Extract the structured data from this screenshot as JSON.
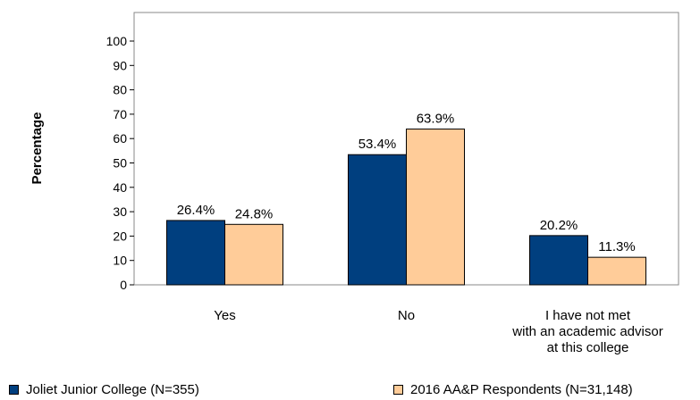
{
  "chart_data": {
    "type": "bar",
    "ylabel": "Percentage",
    "ylim": [
      0,
      100
    ],
    "yticks": [
      0,
      10,
      20,
      30,
      40,
      50,
      60,
      70,
      80,
      90,
      100
    ],
    "categories": [
      "Yes",
      "No",
      "I have not met\nwith an academic advisor\nat this college"
    ],
    "series": [
      {
        "name": "Joliet Junior College (N=355)",
        "color": "#003f7f",
        "values": [
          26.4,
          53.4,
          20.2
        ],
        "labels": [
          "26.4%",
          "53.4%",
          "20.2%"
        ]
      },
      {
        "name": "2016 AA&P Respondents (N=31,148)",
        "color": "#ffcc99",
        "values": [
          24.8,
          63.9,
          11.3
        ],
        "labels": [
          "24.8%",
          "63.9%",
          "11.3%"
        ]
      }
    ],
    "grid": false,
    "legend_position": "bottom"
  }
}
